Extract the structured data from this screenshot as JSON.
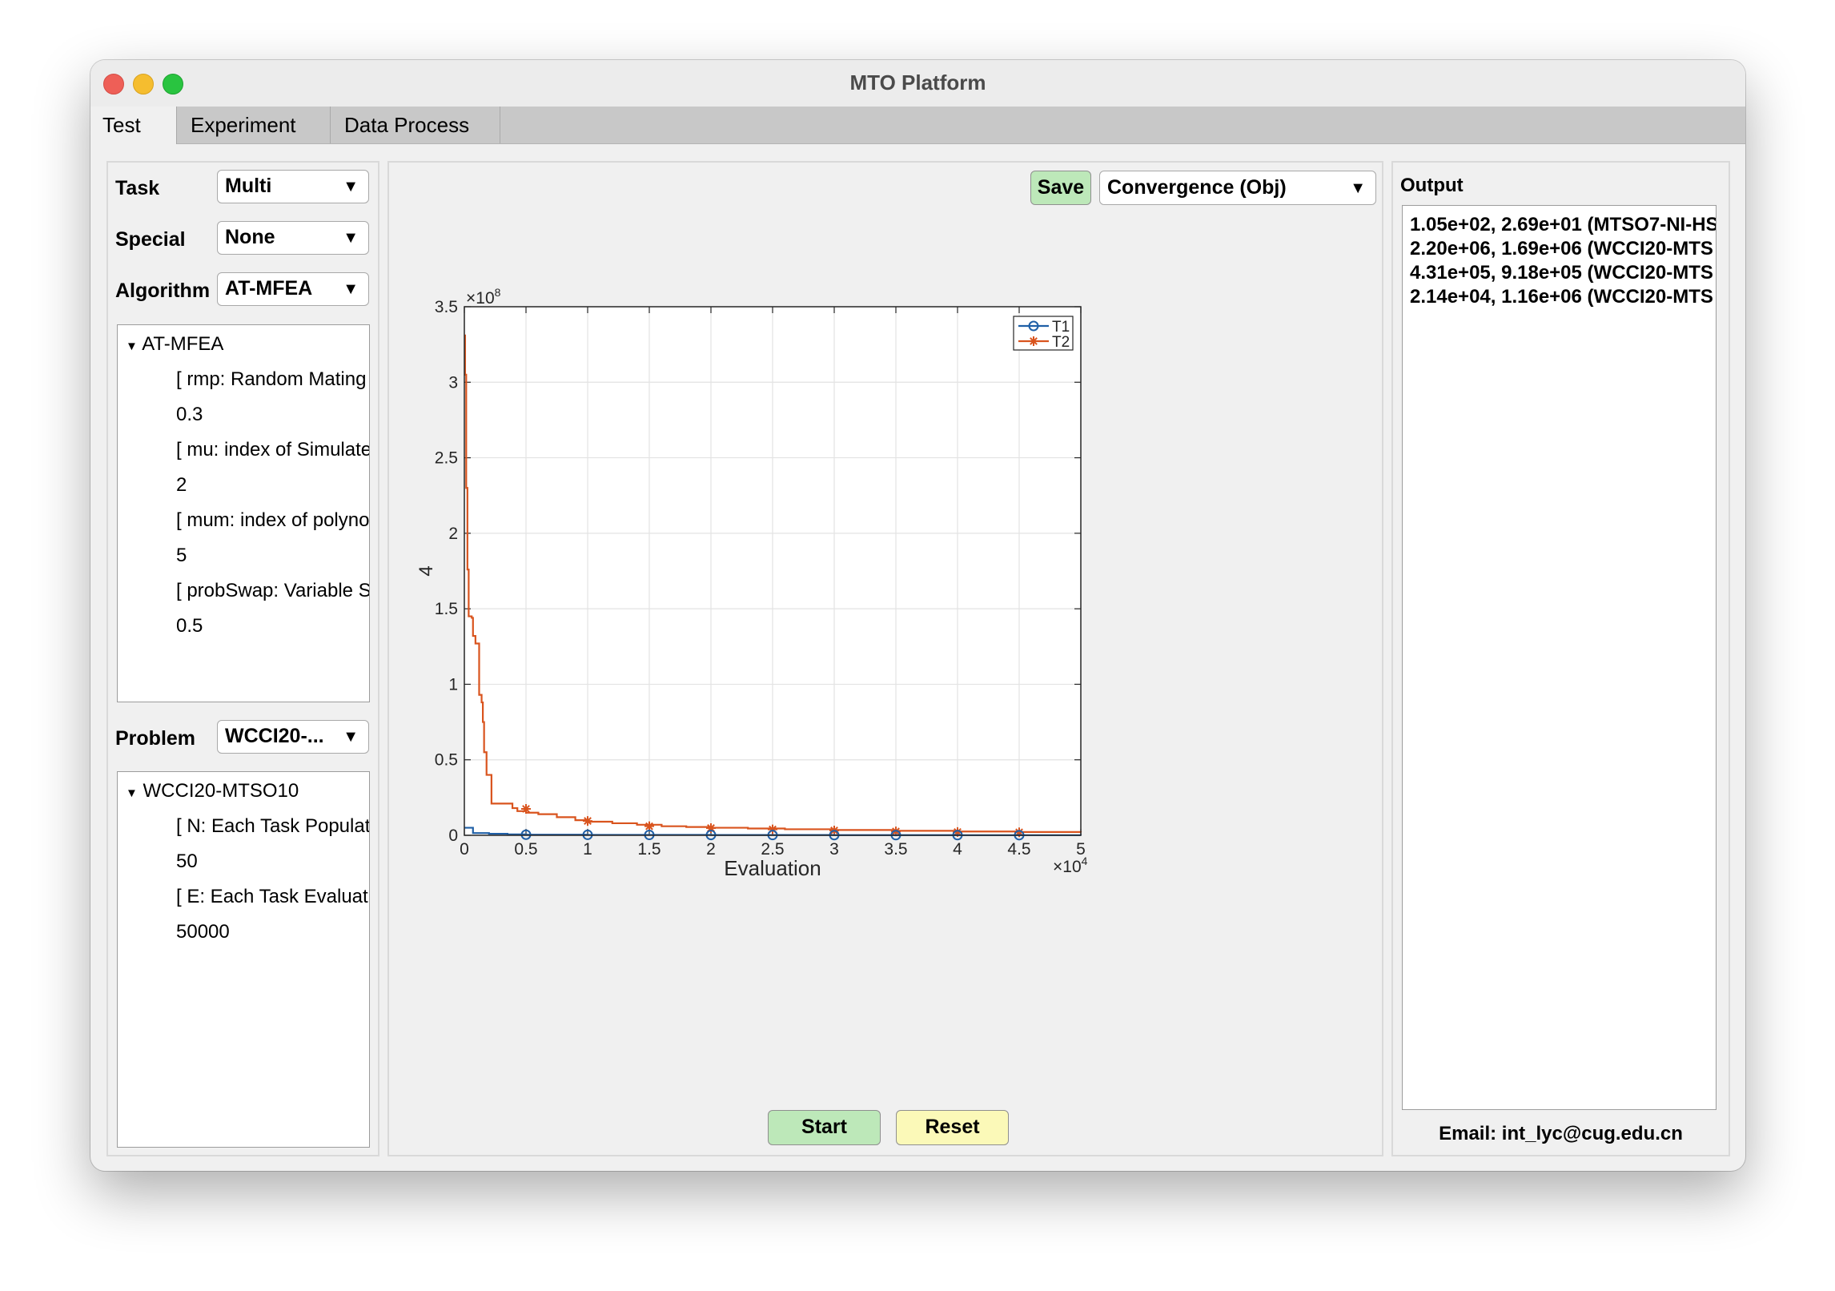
{
  "window": {
    "title": "MTO Platform"
  },
  "tabs": [
    {
      "label": "Test",
      "active": true
    },
    {
      "label": "Experiment",
      "active": false
    },
    {
      "label": "Data Process",
      "active": false
    }
  ],
  "left": {
    "task_label": "Task",
    "task_value": "Multi",
    "special_label": "Special",
    "special_value": "None",
    "algorithm_label": "Algorithm",
    "algorithm_value": "AT-MFEA",
    "algorithm_tree": {
      "root": "AT-MFEA",
      "rows": [
        "[ rmp: Random Mating",
        "0.3",
        "[ mu: index of Simulate",
        "2",
        "[ mum: index of polyno",
        "5",
        "[ probSwap: Variable S",
        "0.5"
      ]
    },
    "problem_label": "Problem",
    "problem_value": "WCCI20-...",
    "problem_tree": {
      "root": "WCCI20-MTSO10",
      "rows": [
        "[ N: Each Task Populat",
        "50",
        "[ E: Each Task Evaluati",
        "50000"
      ]
    }
  },
  "center": {
    "save_label": "Save",
    "plot_type_value": "Convergence (Obj)",
    "start_label": "Start",
    "reset_label": "Reset",
    "colors": {
      "save": "#bde8b9",
      "start": "#bde8b9",
      "reset": "#fbf9b8"
    }
  },
  "right": {
    "output_label": "Output",
    "output_lines": [
      "1.05e+02, 2.69e+01 (MTSO7-NI-HS",
      "2.20e+06, 1.69e+06 (WCCI20-MTS",
      "4.31e+05, 9.18e+05 (WCCI20-MTS",
      "2.14e+04, 1.16e+06 (WCCI20-MTS"
    ],
    "email": "Email: int_lyc@cug.edu.cn"
  },
  "chart_data": {
    "type": "line",
    "xlabel": "Evaluation",
    "ylabel": "4",
    "x_exponent_label": "×10",
    "x_exponent": "4",
    "y_exponent_label": "×10",
    "y_exponent": "8",
    "xlim": [
      0,
      50000
    ],
    "ylim": [
      0,
      350000000
    ],
    "x_ticks": [
      0,
      5000,
      10000,
      15000,
      20000,
      25000,
      30000,
      35000,
      40000,
      45000,
      50000
    ],
    "x_tick_labels": [
      "0",
      "0.5",
      "1",
      "1.5",
      "2",
      "2.5",
      "3",
      "3.5",
      "4",
      "4.5",
      "5"
    ],
    "y_ticks": [
      0,
      50000000,
      100000000,
      150000000,
      200000000,
      250000000,
      300000000,
      350000000
    ],
    "y_tick_labels": [
      "0",
      "0.5",
      "1",
      "1.5",
      "2",
      "2.5",
      "3",
      "3.5"
    ],
    "grid": true,
    "legend_position": "top-right",
    "series": [
      {
        "name": "T1",
        "color": "#1f5fa6",
        "marker": "circle",
        "step": true,
        "points": [
          [
            0,
            5000000
          ],
          [
            600,
            5000000
          ],
          [
            700,
            1500000
          ],
          [
            2000,
            1000000
          ],
          [
            3500,
            600000
          ],
          [
            5000,
            400000
          ],
          [
            10000,
            300000
          ],
          [
            20000,
            200000
          ],
          [
            30000,
            150000
          ],
          [
            40000,
            100000
          ],
          [
            50000,
            80000
          ]
        ],
        "markers": [
          [
            5000,
            400000
          ],
          [
            10000,
            300000
          ],
          [
            15000,
            250000
          ],
          [
            20000,
            200000
          ],
          [
            25000,
            170000
          ],
          [
            30000,
            150000
          ],
          [
            35000,
            120000
          ],
          [
            40000,
            100000
          ],
          [
            45000,
            90000
          ]
        ]
      },
      {
        "name": "T2",
        "color": "#d9541e",
        "marker": "star",
        "step": true,
        "points": [
          [
            0,
            331000000
          ],
          [
            60,
            305000000
          ],
          [
            150,
            230000000
          ],
          [
            250,
            176000000
          ],
          [
            350,
            145000000
          ],
          [
            600,
            144000000
          ],
          [
            700,
            132000000
          ],
          [
            900,
            127000000
          ],
          [
            1200,
            93000000
          ],
          [
            1400,
            88000000
          ],
          [
            1500,
            75000000
          ],
          [
            1600,
            55000000
          ],
          [
            1800,
            40000000
          ],
          [
            2200,
            21000000
          ],
          [
            3900,
            18000000
          ],
          [
            4300,
            16000000
          ],
          [
            5000,
            15000000
          ],
          [
            6000,
            14000000
          ],
          [
            7500,
            12000000
          ],
          [
            9000,
            10000000
          ],
          [
            10000,
            9000000
          ],
          [
            12000,
            8000000
          ],
          [
            14000,
            7000000
          ],
          [
            16000,
            6000000
          ],
          [
            18000,
            5500000
          ],
          [
            20000,
            5000000
          ],
          [
            23000,
            4500000
          ],
          [
            26000,
            4000000
          ],
          [
            30000,
            3500000
          ],
          [
            35000,
            3000000
          ],
          [
            40000,
            2500000
          ],
          [
            45000,
            2200000
          ],
          [
            50000,
            2000000
          ]
        ],
        "markers": [
          [
            5000,
            17500000
          ],
          [
            10000,
            9500000
          ],
          [
            15000,
            6000000
          ],
          [
            20000,
            4800000
          ],
          [
            25000,
            3900000
          ],
          [
            30000,
            3200000
          ],
          [
            35000,
            2600000
          ],
          [
            40000,
            2200000
          ],
          [
            45000,
            2000000
          ]
        ]
      }
    ]
  }
}
